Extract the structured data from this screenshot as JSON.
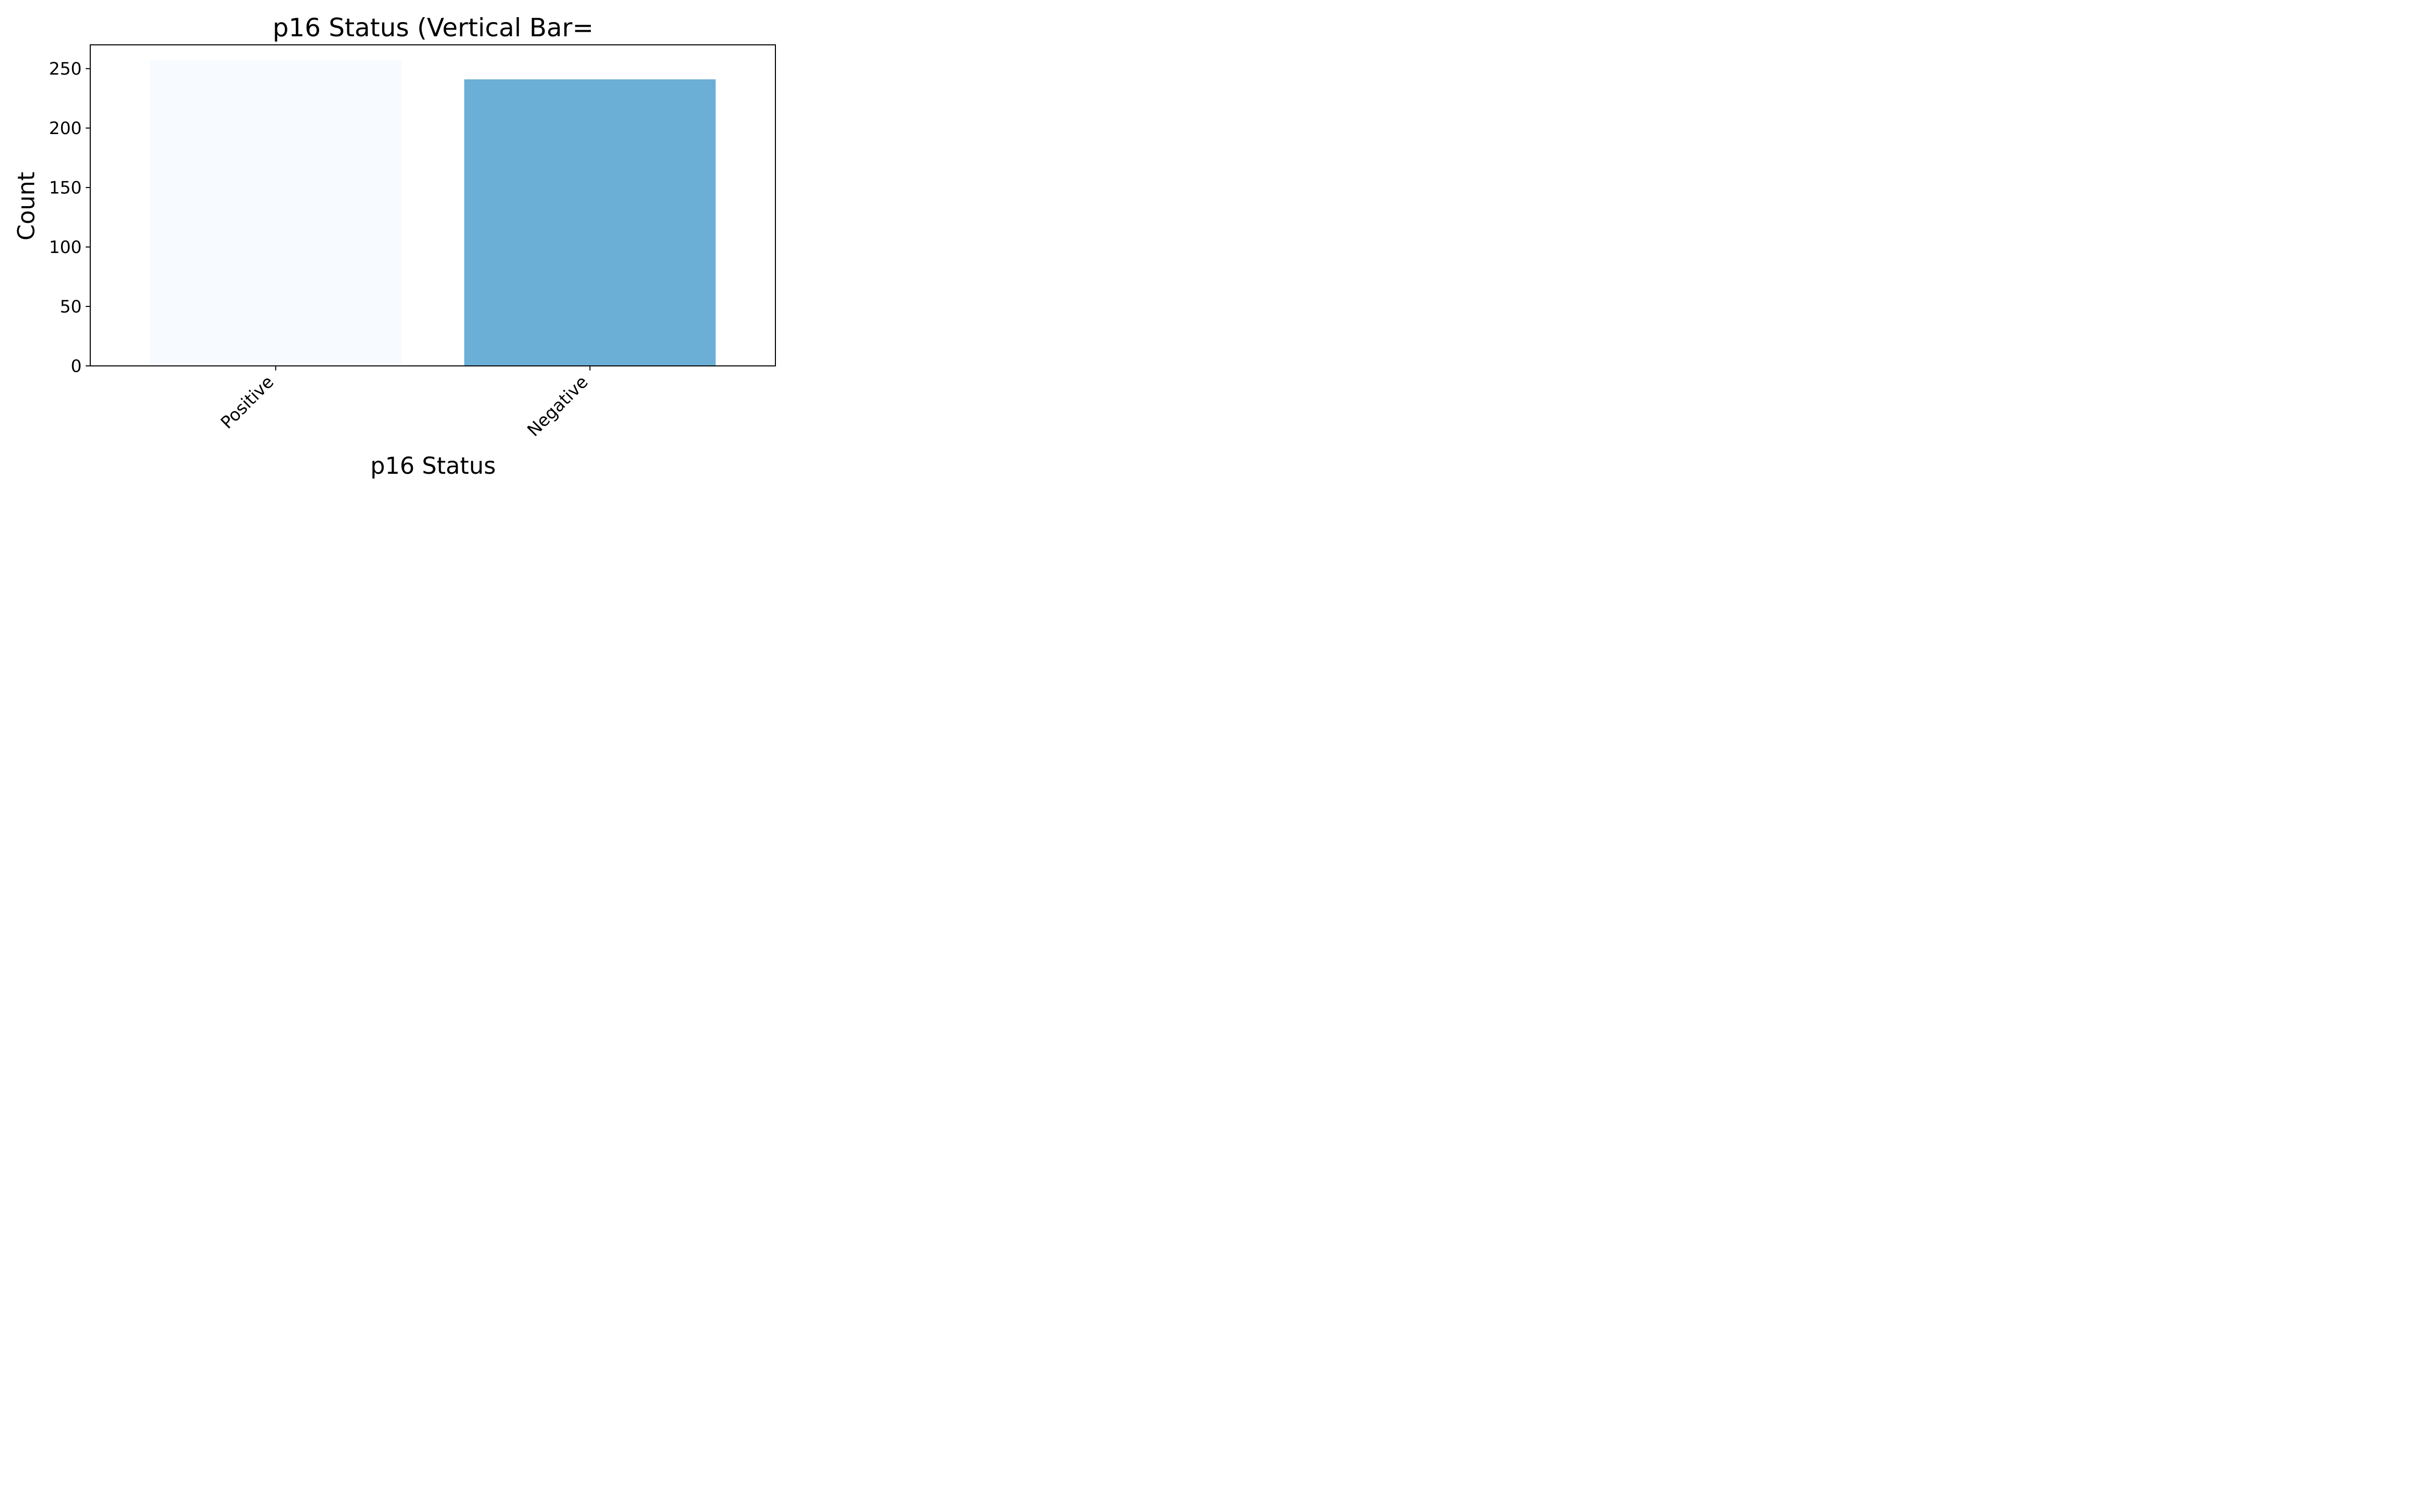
{
  "chart_data": {
    "type": "bar",
    "title": "p16 Status (Vertical Bar=",
    "xlabel": "p16 Status",
    "ylabel": "Count",
    "categories": [
      "Positive",
      "Negative"
    ],
    "values": [
      257,
      241
    ],
    "bar_colors": [
      "#f7fbff",
      "#6baed6"
    ],
    "ylim": [
      0,
      270
    ],
    "yticks": [
      0,
      50,
      100,
      150,
      200,
      250
    ],
    "grid": false,
    "legend": "none"
  }
}
